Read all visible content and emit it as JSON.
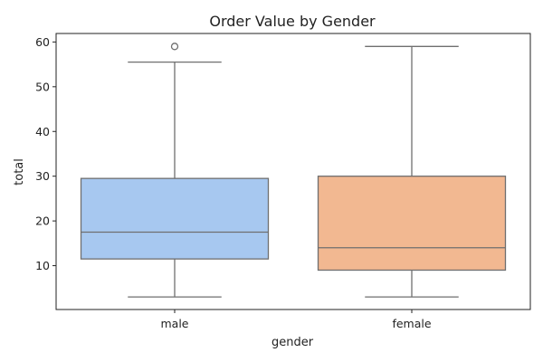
{
  "chart_data": {
    "type": "box",
    "title": "Order Value by Gender",
    "xlabel": "gender",
    "ylabel": "total",
    "categories": [
      "male",
      "female"
    ],
    "ylim": [
      0.2,
      61.9
    ],
    "yticks": [
      10,
      20,
      30,
      40,
      50,
      60
    ],
    "grid": false,
    "legend": "none",
    "boxes": [
      {
        "category": "male",
        "whisker_low": 3.0,
        "q1": 11.5,
        "median": 17.5,
        "q3": 29.5,
        "whisker_high": 55.5,
        "outliers": [
          59.0
        ],
        "color": "#a7c8f0"
      },
      {
        "category": "female",
        "whisker_low": 3.0,
        "q1": 9.0,
        "median": 14.0,
        "q3": 30.0,
        "whisker_high": 59.0,
        "outliers": [],
        "color": "#f2b891"
      }
    ]
  },
  "colors": {
    "line": "#6f6f6f",
    "axis": "#222222"
  }
}
